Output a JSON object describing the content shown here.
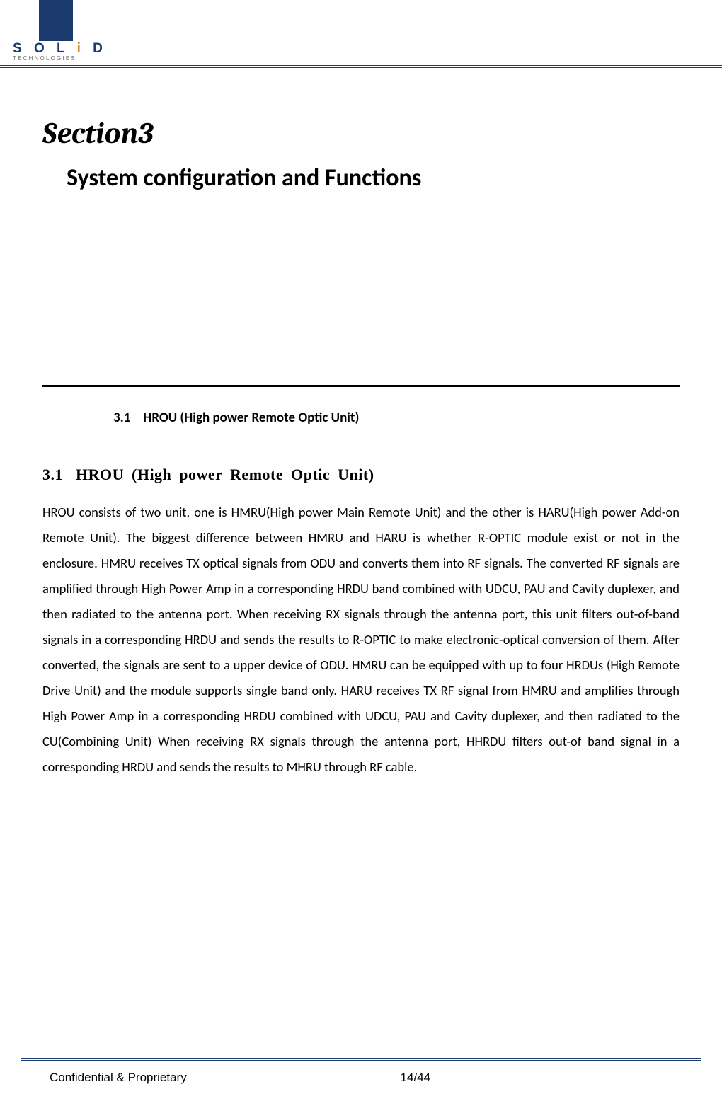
{
  "logo": {
    "brand_letters": "SOLiD",
    "tagline": "TECHNOLOGIES",
    "brand_color": "#1a3a6e",
    "accent_color": "#d0902a"
  },
  "section": {
    "title": "Section3",
    "subtitle": "System configuration and Functions"
  },
  "toc": {
    "number": "3.1",
    "text": "HROU (High power Remote Optic Unit)"
  },
  "subheading": {
    "number": "3.1",
    "text": "HROU  (High  power  Remote  Optic  Unit)"
  },
  "body": "HROU consists of two unit, one is HMRU(High power Main Remote Unit) and the other is HARU(High power Add-on Remote Unit).\nThe biggest difference between HMRU and HARU is whether R-OPTIC module exist or not in the enclosure.\nHMRU receives TX optical signals from ODU and converts them into RF signals. The converted RF signals are amplified through High Power Amp in a corresponding HRDU band combined with UDCU, PAU and Cavity duplexer, and then radiated to the antenna port.\nWhen receiving RX signals through the antenna port, this unit filters out-of-band signals in a corresponding HRDU and sends the results to R-OPTIC to make electronic-optical conversion of them. After converted, the signals are sent to a upper device of ODU. HMRU can be equipped with up to four HRDUs (High Remote Drive Unit) and the module supports single band only.\nHARU receives TX RF signal from HMRU and amplifies through High Power Amp in a corresponding HRDU combined with UDCU, PAU and Cavity duplexer, and then radiated to the CU(Combining Unit)\nWhen receiving RX signals through the antenna port, HHRDU filters out-of band signal in a corresponding HRDU and sends the results to MHRU through RF cable.",
  "footer": {
    "left": "Confidential & Proprietary",
    "center": "14/44"
  }
}
